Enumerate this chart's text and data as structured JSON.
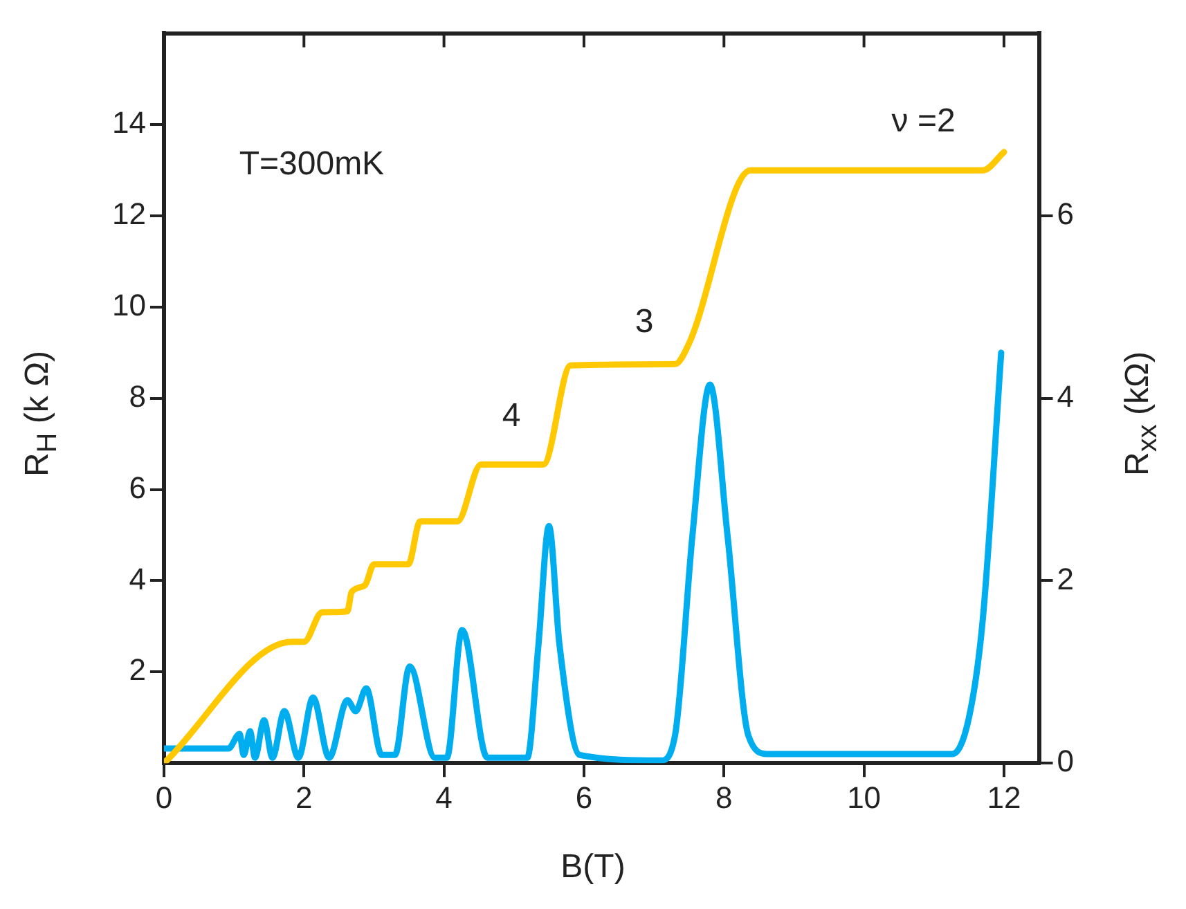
{
  "chart_data": {
    "type": "line",
    "xlabel": "B(T)",
    "ylabel": "R$_{H}$ (k Ω)",
    "y2label": "R$_{xx}$ (kΩ)",
    "xlim": [
      0,
      12.5
    ],
    "xticks": [
      0,
      2,
      4,
      6,
      8,
      10,
      12
    ],
    "ylim": [
      0,
      16
    ],
    "yticks": [
      2,
      4,
      6,
      8,
      10,
      12,
      14
    ],
    "y2lim": [
      0,
      8
    ],
    "y2ticks": [
      0,
      2,
      4,
      6
    ],
    "grid": false,
    "legend": false,
    "marker": "none",
    "line_style": "solid",
    "series": [
      {
        "color": "#ffc800",
        "x": [
          0,
          1.83,
          2.0,
          2.26,
          2.62,
          2.68,
          2.87,
          3.0,
          3.49,
          3.66,
          4.19,
          4.53,
          5.42,
          5.81,
          7.3,
          7.5,
          8.38,
          11.7,
          12.0
        ],
        "values": [
          0,
          2.66,
          2.66,
          3.31,
          3.33,
          3.75,
          3.9,
          4.36,
          4.36,
          5.3,
          5.3,
          6.55,
          6.55,
          8.72,
          8.75,
          9.2,
          13.0,
          13.0,
          13.4
        ]
      },
      {
        "color": "#00aeef",
        "axis": "y2",
        "x": [
          0,
          0.92,
          1.08,
          1.14,
          1.23,
          1.3,
          1.43,
          1.55,
          1.72,
          1.92,
          2.13,
          2.36,
          2.62,
          2.74,
          2.89,
          3.11,
          3.3,
          3.51,
          3.87,
          4.04,
          4.26,
          4.62,
          5.19,
          5.35,
          5.5,
          5.65,
          5.94,
          7.1,
          7.3,
          7.55,
          7.8,
          8.05,
          8.35,
          8.62,
          11.26,
          11.5,
          11.7,
          11.96
        ],
        "values": [
          0.16,
          0.16,
          0.32,
          0.09,
          0.35,
          0.06,
          0.47,
          0.06,
          0.57,
          0.06,
          0.72,
          0.06,
          0.69,
          0.57,
          0.82,
          0.09,
          0.09,
          1.06,
          0.06,
          0.06,
          1.46,
          0.06,
          0.06,
          1.3,
          2.6,
          1.3,
          0.09,
          0.03,
          0.3,
          2.5,
          4.15,
          2.5,
          0.3,
          0.1,
          0.1,
          0.5,
          1.6,
          4.5
        ]
      }
    ],
    "annotations": [
      "T=300mK",
      "4",
      "3",
      "ν =2"
    ]
  }
}
